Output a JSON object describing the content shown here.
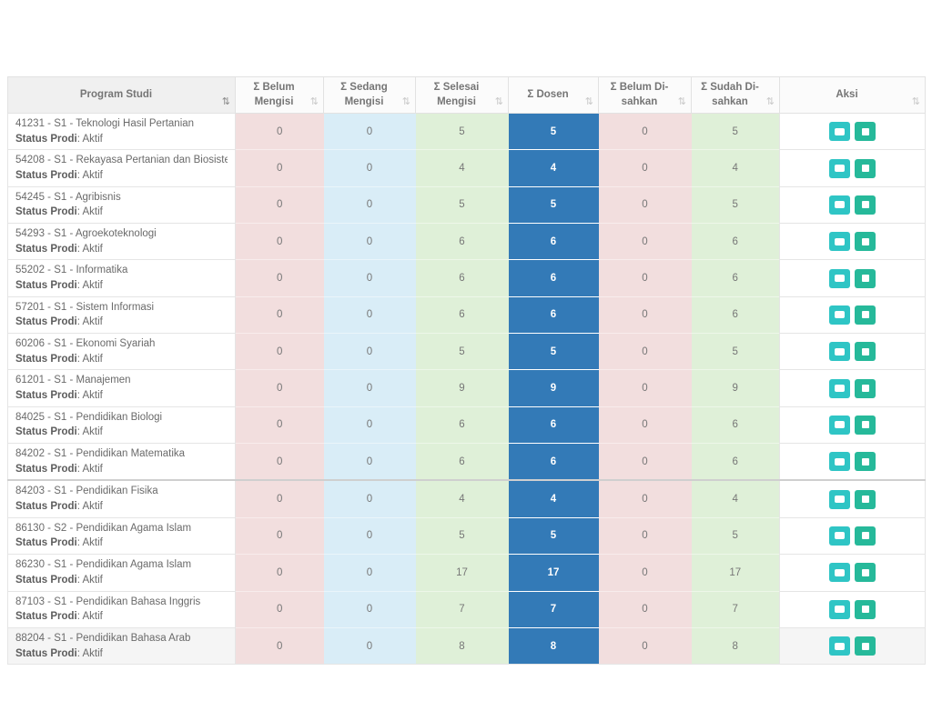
{
  "table": {
    "columns": [
      {
        "key": "name",
        "label": "Program Studi"
      },
      {
        "key": "belum_mengisi",
        "label": "Σ Belum Mengisi"
      },
      {
        "key": "sedang_mengisi",
        "label": "Σ Sedang Mengisi"
      },
      {
        "key": "selesai_mengisi",
        "label": "Σ Selesai Mengisi"
      },
      {
        "key": "dosen",
        "label": "Σ Dosen"
      },
      {
        "key": "belum_disahkan",
        "label": "Σ Belum Di-sahkan"
      },
      {
        "key": "sudah_disahkan",
        "label": "Σ Sudah Di-sahkan"
      },
      {
        "key": "aksi",
        "label": "Aksi"
      }
    ],
    "rows": [
      {
        "name": "41231 - S1 - Teknologi Hasil Pertanian",
        "status_label": "Status Prodi",
        "status_value": ": Aktif",
        "belum_mengisi": "0",
        "sedang_mengisi": "0",
        "selesai_mengisi": "5",
        "dosen": "5",
        "belum_disahkan": "0",
        "sudah_disahkan": "5",
        "group_start": false,
        "highlighted": false
      },
      {
        "name": "54208 - S1 - Rekayasa Pertanian dan Biosistem",
        "status_label": "Status Prodi",
        "status_value": ": Aktif",
        "belum_mengisi": "0",
        "sedang_mengisi": "0",
        "selesai_mengisi": "4",
        "dosen": "4",
        "belum_disahkan": "0",
        "sudah_disahkan": "4",
        "group_start": false,
        "highlighted": false
      },
      {
        "name": "54245 - S1 - Agribisnis",
        "status_label": "Status Prodi",
        "status_value": ": Aktif",
        "belum_mengisi": "0",
        "sedang_mengisi": "0",
        "selesai_mengisi": "5",
        "dosen": "5",
        "belum_disahkan": "0",
        "sudah_disahkan": "5",
        "group_start": false,
        "highlighted": false
      },
      {
        "name": "54293 - S1 - Agroekoteknologi",
        "status_label": "Status Prodi",
        "status_value": ": Aktif",
        "belum_mengisi": "0",
        "sedang_mengisi": "0",
        "selesai_mengisi": "6",
        "dosen": "6",
        "belum_disahkan": "0",
        "sudah_disahkan": "6",
        "group_start": false,
        "highlighted": false
      },
      {
        "name": "55202 - S1 - Informatika",
        "status_label": "Status Prodi",
        "status_value": ": Aktif",
        "belum_mengisi": "0",
        "sedang_mengisi": "0",
        "selesai_mengisi": "6",
        "dosen": "6",
        "belum_disahkan": "0",
        "sudah_disahkan": "6",
        "group_start": false,
        "highlighted": false
      },
      {
        "name": "57201 - S1 - Sistem Informasi",
        "status_label": "Status Prodi",
        "status_value": ": Aktif",
        "belum_mengisi": "0",
        "sedang_mengisi": "0",
        "selesai_mengisi": "6",
        "dosen": "6",
        "belum_disahkan": "0",
        "sudah_disahkan": "6",
        "group_start": false,
        "highlighted": false
      },
      {
        "name": "60206 - S1 - Ekonomi Syariah",
        "status_label": "Status Prodi",
        "status_value": ": Aktif",
        "belum_mengisi": "0",
        "sedang_mengisi": "0",
        "selesai_mengisi": "5",
        "dosen": "5",
        "belum_disahkan": "0",
        "sudah_disahkan": "5",
        "group_start": false,
        "highlighted": false
      },
      {
        "name": "61201 - S1 - Manajemen",
        "status_label": "Status Prodi",
        "status_value": ": Aktif",
        "belum_mengisi": "0",
        "sedang_mengisi": "0",
        "selesai_mengisi": "9",
        "dosen": "9",
        "belum_disahkan": "0",
        "sudah_disahkan": "9",
        "group_start": false,
        "highlighted": false
      },
      {
        "name": "84025 - S1 - Pendidikan Biologi",
        "status_label": "Status Prodi",
        "status_value": ": Aktif",
        "belum_mengisi": "0",
        "sedang_mengisi": "0",
        "selesai_mengisi": "6",
        "dosen": "6",
        "belum_disahkan": "0",
        "sudah_disahkan": "6",
        "group_start": false,
        "highlighted": false
      },
      {
        "name": "84202 - S1 - Pendidikan Matematika",
        "status_label": "Status Prodi",
        "status_value": ": Aktif",
        "belum_mengisi": "0",
        "sedang_mengisi": "0",
        "selesai_mengisi": "6",
        "dosen": "6",
        "belum_disahkan": "0",
        "sudah_disahkan": "6",
        "group_start": false,
        "highlighted": false
      },
      {
        "name": "84203 - S1 - Pendidikan Fisika",
        "status_label": "Status Prodi",
        "status_value": ": Aktif",
        "belum_mengisi": "0",
        "sedang_mengisi": "0",
        "selesai_mengisi": "4",
        "dosen": "4",
        "belum_disahkan": "0",
        "sudah_disahkan": "4",
        "group_start": true,
        "highlighted": false
      },
      {
        "name": "86130 - S2 - Pendidikan Agama Islam",
        "status_label": "Status Prodi",
        "status_value": ": Aktif",
        "belum_mengisi": "0",
        "sedang_mengisi": "0",
        "selesai_mengisi": "5",
        "dosen": "5",
        "belum_disahkan": "0",
        "sudah_disahkan": "5",
        "group_start": false,
        "highlighted": false
      },
      {
        "name": "86230 - S1 - Pendidikan Agama Islam",
        "status_label": "Status Prodi",
        "status_value": ": Aktif",
        "belum_mengisi": "0",
        "sedang_mengisi": "0",
        "selesai_mengisi": "17",
        "dosen": "17",
        "belum_disahkan": "0",
        "sudah_disahkan": "17",
        "group_start": false,
        "highlighted": false
      },
      {
        "name": "87103 - S1 - Pendidikan Bahasa Inggris",
        "status_label": "Status Prodi",
        "status_value": ": Aktif",
        "belum_mengisi": "0",
        "sedang_mengisi": "0",
        "selesai_mengisi": "7",
        "dosen": "7",
        "belum_disahkan": "0",
        "sudah_disahkan": "7",
        "group_start": false,
        "highlighted": false
      },
      {
        "name": "88204 - S1 - Pendidikan Bahasa Arab",
        "status_label": "Status Prodi",
        "status_value": ": Aktif",
        "belum_mengisi": "0",
        "sedang_mengisi": "0",
        "selesai_mengisi": "8",
        "dosen": "8",
        "belum_disahkan": "0",
        "sudah_disahkan": "8",
        "group_start": false,
        "highlighted": true
      }
    ]
  },
  "icons": {
    "sort": "⇅"
  },
  "colors": {
    "cell_belum": "#f2dede",
    "cell_sedang": "#d9edf7",
    "cell_selesai": "#dff0d8",
    "cell_dosen": "#337ab7",
    "button_teal": "#2fc5c5",
    "button_green": "#26b99a"
  }
}
